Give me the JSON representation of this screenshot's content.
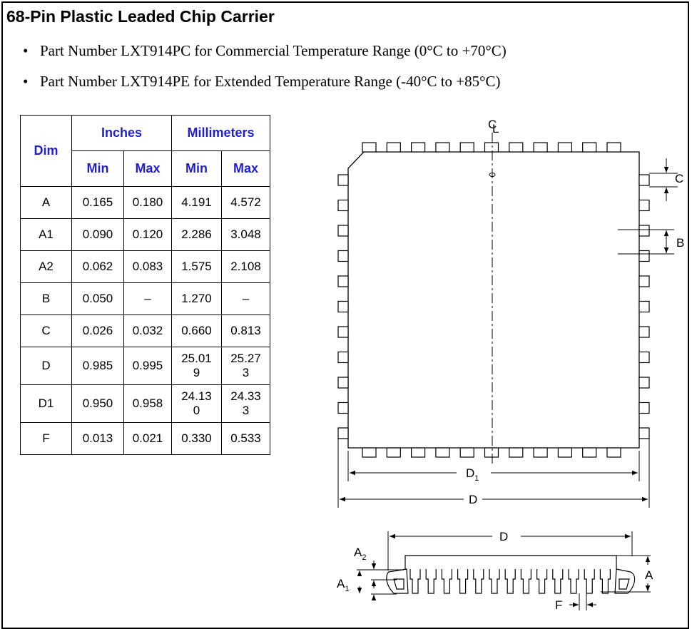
{
  "title": "68-Pin Plastic Leaded Chip Carrier",
  "bullets": [
    "Part Number LXT914PC for Commercial Temperature Range (0°C to +70°C)",
    "Part Number LXT914PE for Extended Temperature Range (-40°C to +85°C)"
  ],
  "table": {
    "dim_header": "Dim",
    "group_headers": [
      "Inches",
      "Millimeters"
    ],
    "sub_headers": [
      "Min",
      "Max",
      "Min",
      "Max"
    ],
    "rows": [
      [
        "A",
        "0.165",
        "0.180",
        "4.191",
        "4.572"
      ],
      [
        "A1",
        "0.090",
        "0.120",
        "2.286",
        "3.048"
      ],
      [
        "A2",
        "0.062",
        "0.083",
        "1.575",
        "2.108"
      ],
      [
        "B",
        "0.050",
        "–",
        "1.270",
        "–"
      ],
      [
        "C",
        "0.026",
        "0.032",
        "0.660",
        "0.813"
      ],
      [
        "D",
        "0.985",
        "0.995",
        "25.019",
        "25.273"
      ],
      [
        "D1",
        "0.950",
        "0.958",
        "24.130",
        "24.333"
      ],
      [
        "F",
        "0.013",
        "0.021",
        "0.330",
        "0.533"
      ]
    ]
  },
  "diagram_labels": {
    "centerline": "L",
    "centerline_c": "C",
    "c": "C",
    "b": "B",
    "d1_main": "D",
    "d1_sub": "1",
    "d": "D",
    "d_side": "D",
    "a2_main": "A",
    "a2_sub": "2",
    "a1_main": "A",
    "a1_sub": "1",
    "a": "A",
    "f": "F"
  },
  "colors": {
    "header_text": "#1f1fcf",
    "line": "#000000"
  }
}
